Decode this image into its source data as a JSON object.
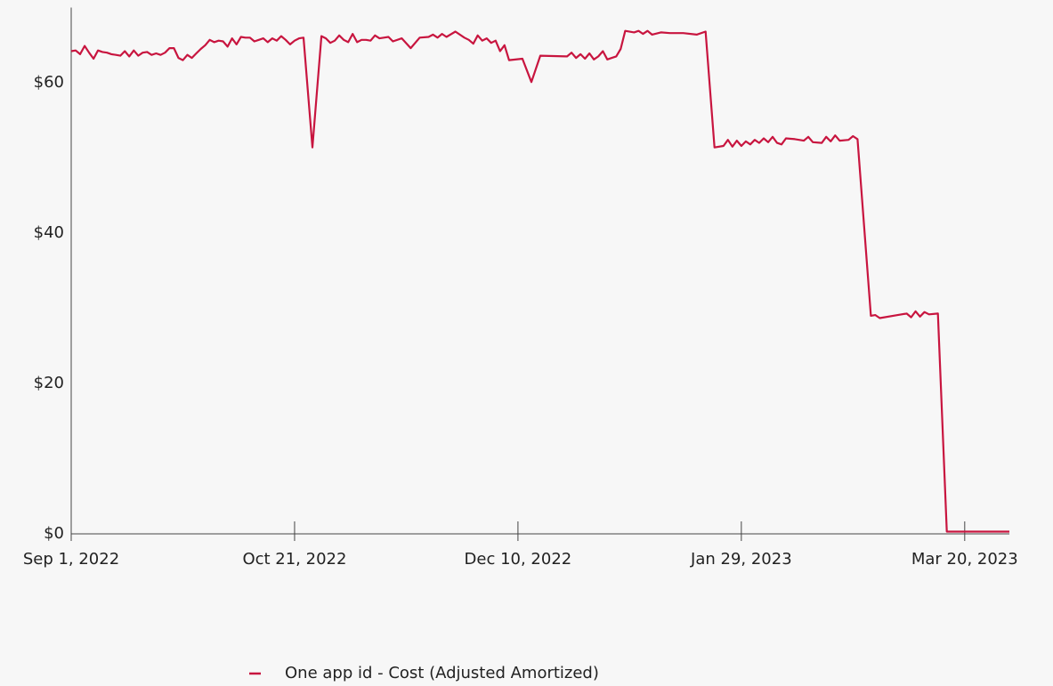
{
  "chart_data": {
    "type": "line",
    "xlim": [
      "2022-09-01",
      "2023-03-30"
    ],
    "xticks": [
      {
        "value": "2022-09-01",
        "label": "Sep 1, 2022"
      },
      {
        "value": "2022-10-21",
        "label": "Oct 21, 2022"
      },
      {
        "value": "2022-12-10",
        "label": "Dec 10, 2022"
      },
      {
        "value": "2023-01-29",
        "label": "Jan 29, 2023"
      },
      {
        "value": "2023-03-20",
        "label": "Mar 20, 2023"
      }
    ],
    "ylim": [
      0,
      70
    ],
    "yticks": [
      {
        "value": 0,
        "label": "$0"
      },
      {
        "value": 20,
        "label": "$20"
      },
      {
        "value": 40,
        "label": "$40"
      },
      {
        "value": 60,
        "label": "$60"
      }
    ],
    "grid": false,
    "legend": "bottom",
    "x": [
      "2022-09-01",
      "2022-09-02",
      "2022-09-03",
      "2022-09-04",
      "2022-09-05",
      "2022-09-06",
      "2022-09-07",
      "2022-09-08",
      "2022-09-09",
      "2022-09-10",
      "2022-09-11",
      "2022-09-12",
      "2022-09-13",
      "2022-09-14",
      "2022-09-15",
      "2022-09-16",
      "2022-09-17",
      "2022-09-18",
      "2022-09-19",
      "2022-09-20",
      "2022-09-21",
      "2022-09-22",
      "2022-09-23",
      "2022-09-24",
      "2022-09-25",
      "2022-09-26",
      "2022-09-27",
      "2022-09-28",
      "2022-09-29",
      "2022-09-30",
      "2022-10-01",
      "2022-10-02",
      "2022-10-03",
      "2022-10-04",
      "2022-10-05",
      "2022-10-06",
      "2022-10-07",
      "2022-10-08",
      "2022-10-09",
      "2022-10-10",
      "2022-10-11",
      "2022-10-12",
      "2022-10-13",
      "2022-10-14",
      "2022-10-15",
      "2022-10-16",
      "2022-10-17",
      "2022-10-18",
      "2022-10-19",
      "2022-10-20",
      "2022-10-21",
      "2022-10-22",
      "2022-10-23",
      "2022-10-25",
      "2022-10-27",
      "2022-10-28",
      "2022-10-29",
      "2022-10-30",
      "2022-10-31",
      "2022-11-01",
      "2022-11-02",
      "2022-11-03",
      "2022-11-04",
      "2022-11-05",
      "2022-11-06",
      "2022-11-07",
      "2022-11-08",
      "2022-11-09",
      "2022-11-10",
      "2022-11-11",
      "2022-11-12",
      "2022-11-14",
      "2022-11-16",
      "2022-11-18",
      "2022-11-20",
      "2022-11-21",
      "2022-11-22",
      "2022-11-23",
      "2022-11-24",
      "2022-11-26",
      "2022-11-28",
      "2022-11-29",
      "2022-11-30",
      "2022-12-01",
      "2022-12-02",
      "2022-12-03",
      "2022-12-04",
      "2022-12-05",
      "2022-12-06",
      "2022-12-07",
      "2022-12-08",
      "2022-12-11",
      "2022-12-13",
      "2022-12-15",
      "2022-12-21",
      "2022-12-22",
      "2022-12-23",
      "2022-12-24",
      "2022-12-25",
      "2022-12-26",
      "2022-12-27",
      "2022-12-28",
      "2022-12-29",
      "2022-12-30",
      "2022-12-31",
      "2023-01-01",
      "2023-01-02",
      "2023-01-03",
      "2023-01-05",
      "2023-01-06",
      "2023-01-07",
      "2023-01-08",
      "2023-01-09",
      "2023-01-11",
      "2023-01-13",
      "2023-01-16",
      "2023-01-19",
      "2023-01-21",
      "2023-01-23",
      "2023-01-25",
      "2023-01-26",
      "2023-01-27",
      "2023-01-28",
      "2023-01-29",
      "2023-01-30",
      "2023-01-31",
      "2023-02-01",
      "2023-02-02",
      "2023-02-03",
      "2023-02-04",
      "2023-02-05",
      "2023-02-06",
      "2023-02-07",
      "2023-02-08",
      "2023-02-10",
      "2023-02-12",
      "2023-02-13",
      "2023-02-14",
      "2023-02-16",
      "2023-02-17",
      "2023-02-18",
      "2023-02-19",
      "2023-02-20",
      "2023-02-22",
      "2023-02-23",
      "2023-02-24",
      "2023-02-27",
      "2023-02-28",
      "2023-03-01",
      "2023-03-05",
      "2023-03-07",
      "2023-03-08",
      "2023-03-09",
      "2023-03-10",
      "2023-03-11",
      "2023-03-12",
      "2023-03-14",
      "2023-03-16",
      "2023-03-30"
    ],
    "series": [
      {
        "name": "One app id - Cost (Adjusted Amortized)",
        "color": "#c8153f",
        "values": [
          64.2,
          64.3,
          63.8,
          64.9,
          64.0,
          63.2,
          64.3,
          64.1,
          64.0,
          63.8,
          63.7,
          63.6,
          64.2,
          63.5,
          64.3,
          63.6,
          64.0,
          64.1,
          63.7,
          63.9,
          63.7,
          64.0,
          64.6,
          64.6,
          63.3,
          63.0,
          63.7,
          63.3,
          63.9,
          64.5,
          65.0,
          65.7,
          65.4,
          65.6,
          65.5,
          64.8,
          65.9,
          65.1,
          66.1,
          66.0,
          66.0,
          65.5,
          65.7,
          65.9,
          65.4,
          65.9,
          65.6,
          66.2,
          65.7,
          65.1,
          65.6,
          65.9,
          66.0,
          51.4,
          66.2,
          65.9,
          65.3,
          65.6,
          66.3,
          65.7,
          65.4,
          66.5,
          65.4,
          65.7,
          65.7,
          65.6,
          66.3,
          65.9,
          66.0,
          66.1,
          65.5,
          65.9,
          64.6,
          66.0,
          66.1,
          66.4,
          66.0,
          66.5,
          66.1,
          66.8,
          66.0,
          65.7,
          65.2,
          66.3,
          65.6,
          65.9,
          65.3,
          65.6,
          64.2,
          65.0,
          63.0,
          63.2,
          60.1,
          63.6,
          63.5,
          64.0,
          63.3,
          63.8,
          63.2,
          63.9,
          63.1,
          63.5,
          64.2,
          63.1,
          63.3,
          63.5,
          64.5,
          66.9,
          66.7,
          66.9,
          66.5,
          66.9,
          66.4,
          66.7,
          66.6,
          66.6,
          66.4,
          66.8,
          51.4,
          51.6,
          52.4,
          51.5,
          52.3,
          51.6,
          52.2,
          51.8,
          52.4,
          52.0,
          52.6,
          52.1,
          52.8,
          52.0,
          51.8,
          52.6,
          52.5,
          52.3,
          52.8,
          52.1,
          52.0,
          52.8,
          52.2,
          53.0,
          52.3,
          52.4,
          52.9,
          52.5,
          29.0,
          29.1,
          28.7,
          29.1,
          29.3,
          28.8,
          29.6,
          28.9,
          29.5,
          29.2,
          29.3,
          0.3,
          0.3
        ]
      }
    ]
  }
}
